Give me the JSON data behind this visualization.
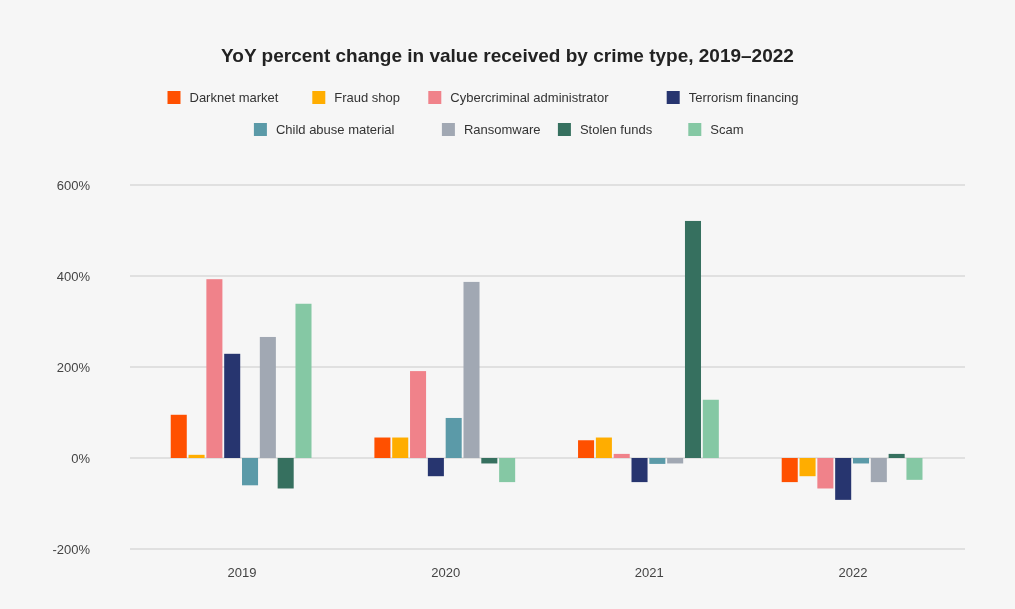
{
  "chart_data": {
    "type": "bar",
    "title": "YoY percent change in value received by crime type, 2019–2022",
    "categories": [
      "2019",
      "2020",
      "2021",
      "2022"
    ],
    "series": [
      {
        "name": "Darknet market",
        "color": "#ff5000",
        "values": [
          95,
          45,
          39,
          -53
        ]
      },
      {
        "name": "Fraud shop",
        "color": "#ffad00",
        "values": [
          7,
          45,
          45,
          -40
        ]
      },
      {
        "name": "Cybercriminal administrator",
        "color": "#f0828a",
        "values": [
          393,
          191,
          9,
          -67
        ]
      },
      {
        "name": "Terrorism financing",
        "color": "#27356f",
        "values": [
          229,
          -40,
          -53,
          -92
        ]
      },
      {
        "name": "Child abuse material",
        "color": "#5b9aa8",
        "values": [
          -60,
          88,
          -13,
          -12
        ]
      },
      {
        "name": "Ransomware",
        "color": "#a1a8b3",
        "values": [
          266,
          387,
          -12,
          -53
        ]
      },
      {
        "name": "Stolen funds",
        "color": "#36705f",
        "values": [
          -67,
          -12,
          521,
          9
        ]
      },
      {
        "name": "Scam",
        "color": "#85c8a4",
        "values": [
          339,
          -53,
          128,
          -48
        ]
      }
    ],
    "ylim": [
      -200,
      600
    ],
    "yticks": [
      {
        "value": -200,
        "label": "-200%"
      },
      {
        "value": 0,
        "label": "0%"
      },
      {
        "value": 200,
        "label": "200%"
      },
      {
        "value": 400,
        "label": "400%"
      },
      {
        "value": 600,
        "label": "600%"
      }
    ],
    "grid": "y",
    "legend": "top"
  }
}
